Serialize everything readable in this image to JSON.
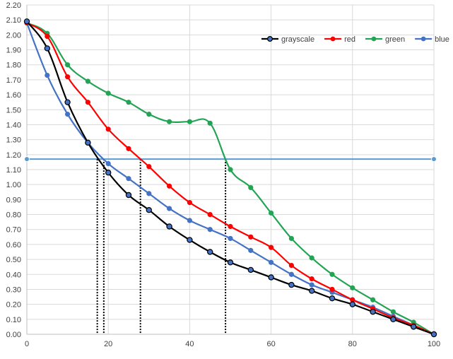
{
  "chart_data": {
    "type": "line",
    "title": "",
    "xlabel": "",
    "ylabel": "",
    "xlim": [
      0,
      100
    ],
    "ylim": [
      0,
      2.2
    ],
    "x_ticks": [
      "0",
      "20",
      "40",
      "60",
      "80",
      "100"
    ],
    "y_ticks": [
      "0.00",
      "0.10",
      "0.20",
      "0.30",
      "0.40",
      "0.50",
      "0.60",
      "0.70",
      "0.80",
      "0.90",
      "1.00",
      "1.10",
      "1.20",
      "1.30",
      "1.40",
      "1.50",
      "1.60",
      "1.70",
      "1.80",
      "1.90",
      "2.00",
      "2.10",
      "2.20"
    ],
    "grid": true,
    "legend_position": "top-right",
    "x": [
      0,
      5,
      10,
      15,
      20,
      25,
      30,
      35,
      40,
      45,
      50,
      55,
      60,
      65,
      70,
      75,
      80,
      85,
      90,
      95,
      100
    ],
    "series": [
      {
        "name": "grayscale",
        "color": "#000000",
        "marker_fill": "#4472c4",
        "values": [
          2.09,
          1.91,
          1.55,
          1.28,
          1.08,
          0.93,
          0.83,
          0.72,
          0.63,
          0.55,
          0.48,
          0.43,
          0.38,
          0.33,
          0.29,
          0.24,
          0.2,
          0.15,
          0.1,
          0.05,
          0.0
        ]
      },
      {
        "name": "red",
        "color": "#ff0000",
        "marker_fill": "#ff0000",
        "values": [
          2.08,
          1.99,
          1.72,
          1.55,
          1.37,
          1.24,
          1.12,
          0.99,
          0.88,
          0.8,
          0.72,
          0.65,
          0.58,
          0.46,
          0.37,
          0.3,
          0.23,
          0.17,
          0.11,
          0.06,
          0.0
        ]
      },
      {
        "name": "green",
        "color": "#23a455",
        "marker_fill": "#23a455",
        "values": [
          2.08,
          2.01,
          1.8,
          1.69,
          1.61,
          1.55,
          1.47,
          1.42,
          1.42,
          1.41,
          1.1,
          0.98,
          0.81,
          0.64,
          0.51,
          0.4,
          0.31,
          0.23,
          0.15,
          0.08,
          0.0
        ]
      },
      {
        "name": "blue",
        "color": "#4472c4",
        "marker_fill": "#4472c4",
        "values": [
          2.08,
          1.73,
          1.47,
          1.28,
          1.14,
          1.04,
          0.94,
          0.84,
          0.76,
          0.7,
          0.64,
          0.56,
          0.48,
          0.4,
          0.33,
          0.28,
          0.23,
          0.18,
          0.12,
          0.06,
          0.0
        ]
      }
    ],
    "threshold_line": {
      "value": 1.17,
      "x_start": 0,
      "x_end": 100,
      "color": "#5b9bd5"
    },
    "drop_lines_x": [
      17.3,
      18.9,
      27.9,
      48.8
    ],
    "drop_line_style": "dotted black"
  }
}
